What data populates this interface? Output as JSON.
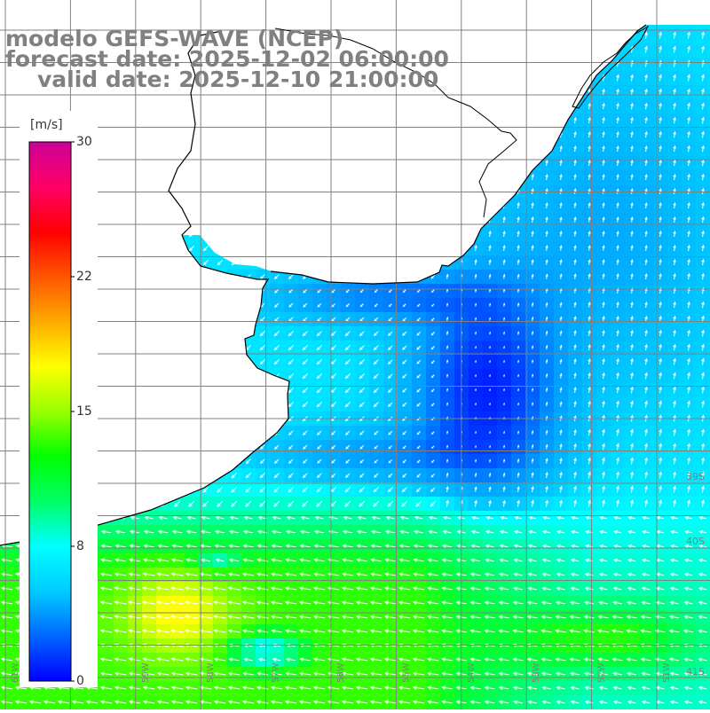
{
  "title": {
    "line1": "modelo GEFS-WAVE (NCEP)",
    "line2": "forecast date: 2025-12-02 06:00:00",
    "line3": "valid date: 2025-12-10 21:00:00"
  },
  "colorbar": {
    "unit": "[m/s]",
    "ticks": [
      "30",
      "22",
      "15",
      "8",
      "0"
    ],
    "colors": [
      "#0000ff",
      "#0066ff",
      "#00ccff",
      "#00ffff",
      "#00ff66",
      "#00ff00",
      "#99ff00",
      "#ffff00",
      "#ffaa00",
      "#ff5500",
      "#ff0000",
      "#ff0066",
      "#cc0099"
    ]
  },
  "lat_labels": [
    "39S",
    "40S",
    "41S"
  ],
  "lon_labels": [
    "61W",
    "60W",
    "59W",
    "58W",
    "57W",
    "56W",
    "55W",
    "54W",
    "53W",
    "52W",
    "51W"
  ],
  "colors": {
    "land": "#ffffff",
    "coast": "#000000",
    "grid": "#808080",
    "vector": "#ffffff",
    "title": "#808080"
  }
}
